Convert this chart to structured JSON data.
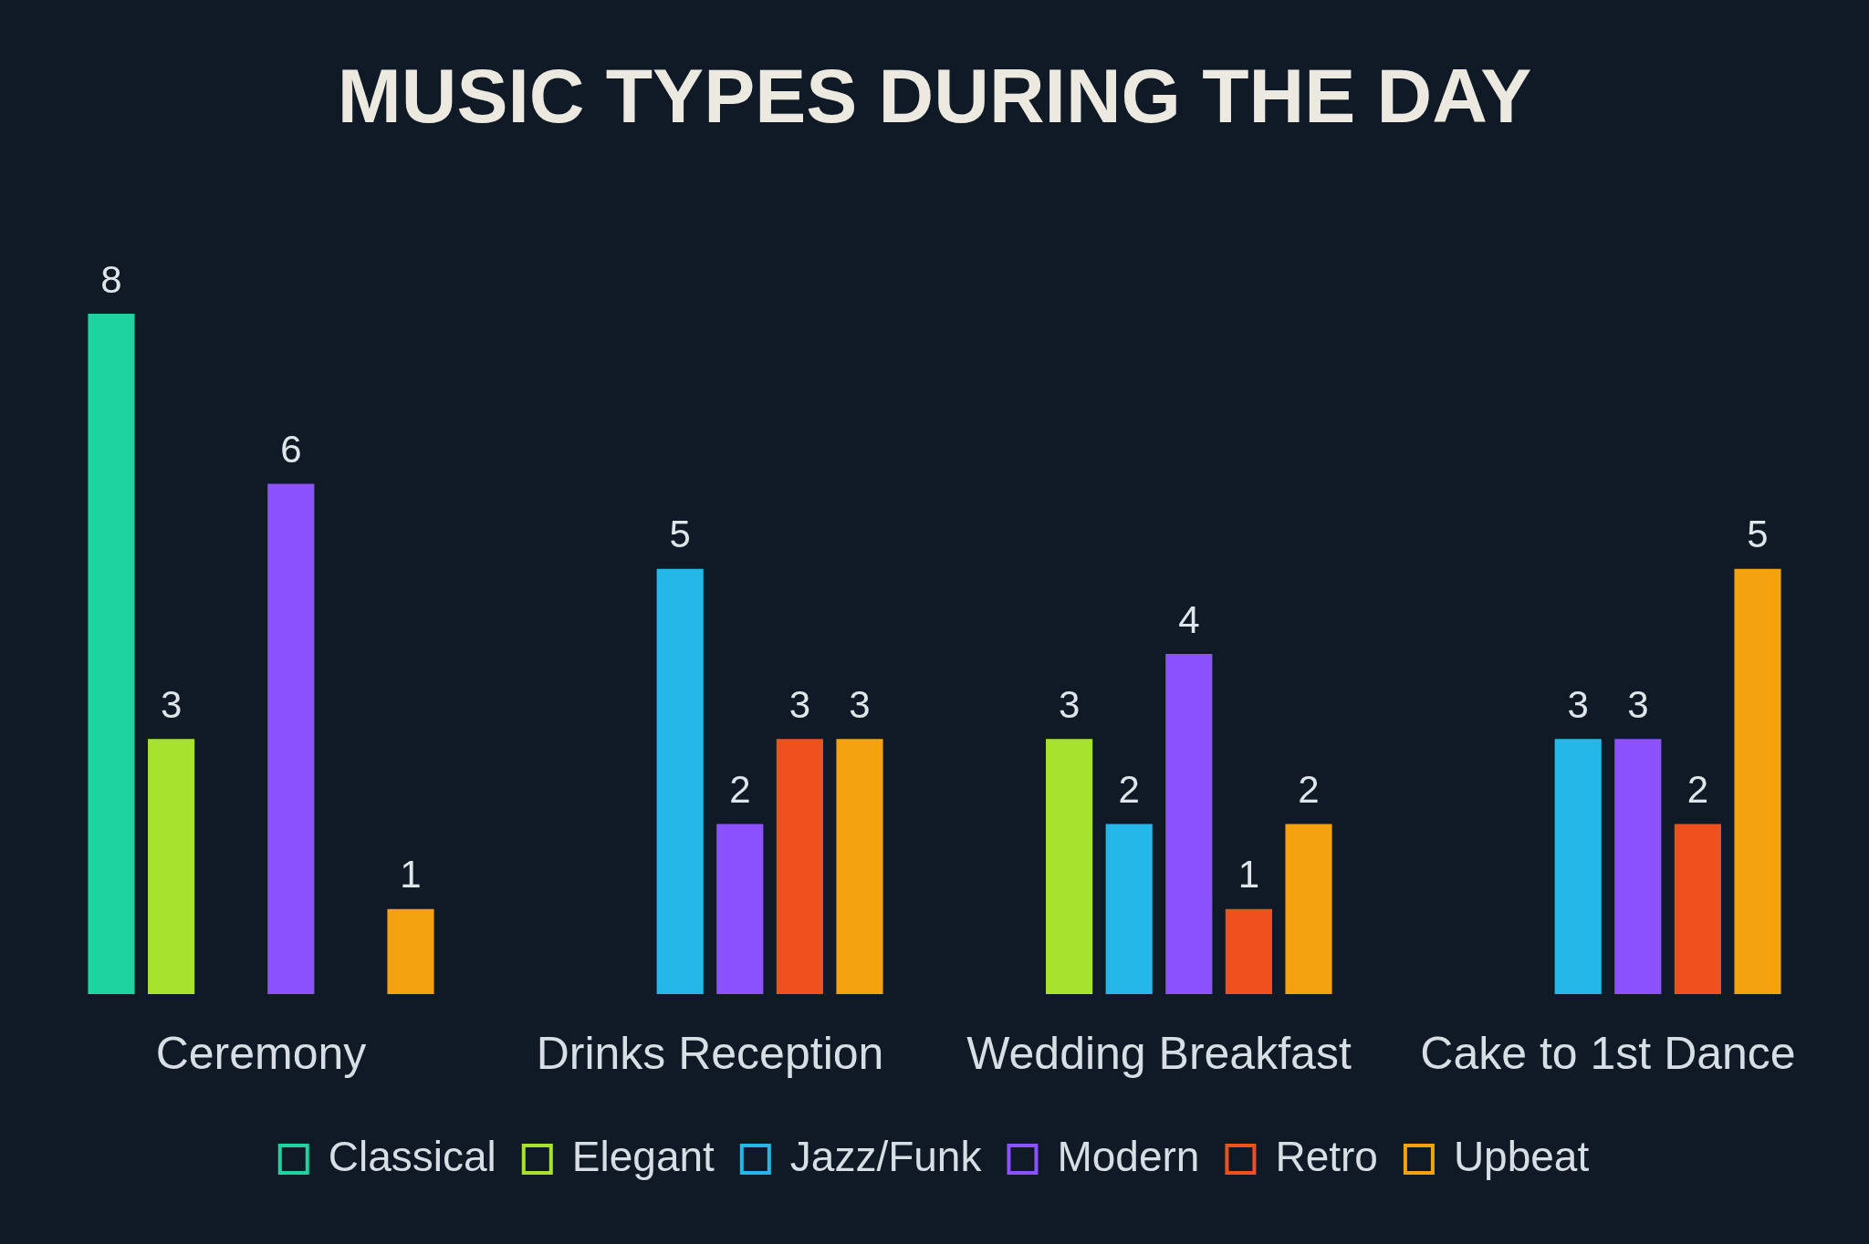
{
  "chart_data": {
    "type": "bar",
    "title": "MUSIC TYPES DURING THE DAY",
    "categories": [
      "Ceremony",
      "Drinks Reception",
      "Wedding Breakfast",
      "Cake to 1st Dance"
    ],
    "series": [
      {
        "name": "Classical",
        "color": "#1fd3a0",
        "values": [
          8,
          null,
          null,
          null
        ]
      },
      {
        "name": "Elegant",
        "color": "#a6e22e",
        "values": [
          3,
          null,
          3,
          null
        ]
      },
      {
        "name": "Jazz/Funk",
        "color": "#25b7e8",
        "values": [
          null,
          5,
          2,
          3
        ]
      },
      {
        "name": "Modern",
        "color": "#8c52ff",
        "values": [
          6,
          2,
          4,
          3
        ]
      },
      {
        "name": "Retro",
        "color": "#f0501e",
        "values": [
          null,
          3,
          1,
          2
        ]
      },
      {
        "name": "Upbeat",
        "color": "#f5a20f",
        "values": [
          1,
          3,
          2,
          5
        ]
      }
    ],
    "data_labels": true,
    "legend": "bottom",
    "grid": false
  }
}
